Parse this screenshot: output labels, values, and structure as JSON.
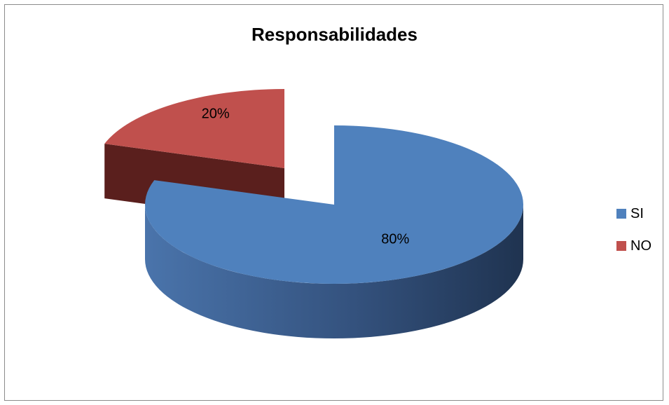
{
  "chart_data": {
    "type": "pie",
    "title": "Responsabilidades",
    "slices": [
      {
        "label": "SI",
        "value": 80,
        "data_label": "80%",
        "color": "#4f81bd",
        "side_color": "#2e4a72"
      },
      {
        "label": "NO",
        "value": 20,
        "data_label": "20%",
        "color": "#c0504d",
        "side_color": "#5a1f1d"
      }
    ],
    "legend_position": "right",
    "style": "3d-exploded"
  }
}
